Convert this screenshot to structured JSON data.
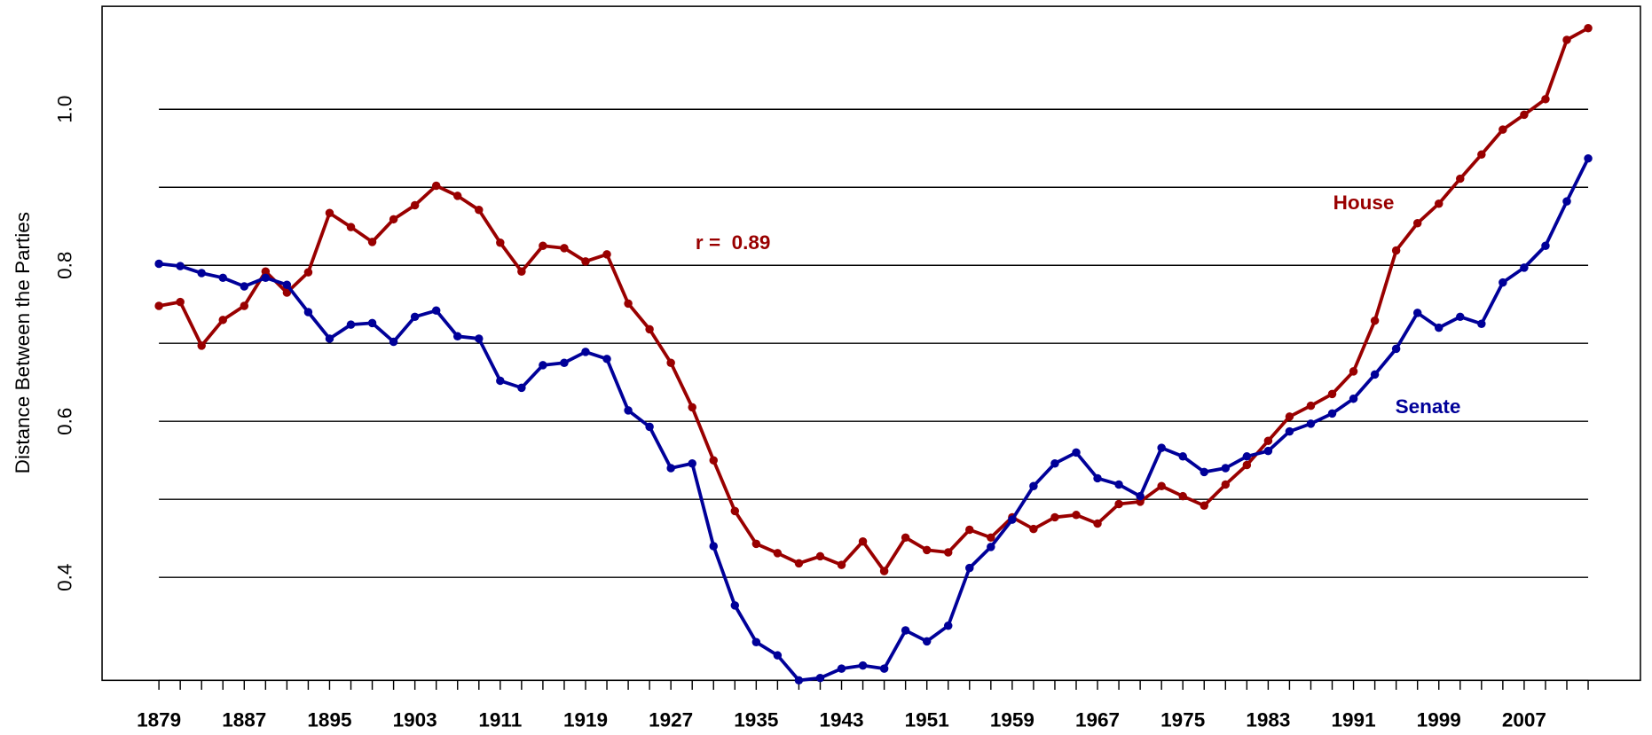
{
  "chart_data": {
    "type": "line",
    "ylabel": "Distance Between the Parties",
    "x": [
      1879,
      1881,
      1883,
      1885,
      1887,
      1889,
      1891,
      1893,
      1895,
      1897,
      1899,
      1901,
      1903,
      1905,
      1907,
      1909,
      1911,
      1913,
      1915,
      1917,
      1919,
      1921,
      1923,
      1925,
      1927,
      1929,
      1931,
      1933,
      1935,
      1937,
      1939,
      1941,
      1943,
      1945,
      1947,
      1949,
      1951,
      1953,
      1955,
      1957,
      1959,
      1961,
      1963,
      1965,
      1967,
      1969,
      1971,
      1973,
      1975,
      1977,
      1979,
      1981,
      1983,
      1985,
      1987,
      1989,
      1991,
      1993,
      1995,
      1997,
      1999,
      2001,
      2003,
      2005,
      2007,
      2009,
      2011,
      2013
    ],
    "series": [
      {
        "name": "House",
        "color": "#990000",
        "values": [
          0.748,
          0.753,
          0.697,
          0.73,
          0.748,
          0.792,
          0.765,
          0.791,
          0.867,
          0.849,
          0.83,
          0.859,
          0.877,
          0.902,
          0.889,
          0.871,
          0.829,
          0.792,
          0.825,
          0.822,
          0.805,
          0.814,
          0.751,
          0.718,
          0.675,
          0.618,
          0.55,
          0.485,
          0.443,
          0.431,
          0.418,
          0.427,
          0.416,
          0.446,
          0.408,
          0.451,
          0.435,
          0.432,
          0.461,
          0.451,
          0.477,
          0.462,
          0.477,
          0.48,
          0.469,
          0.494,
          0.497,
          0.517,
          0.504,
          0.492,
          0.519,
          0.544,
          0.575,
          0.606,
          0.62,
          0.635,
          0.664,
          0.729,
          0.819,
          0.854,
          0.879,
          0.911,
          0.942,
          0.974,
          0.993,
          1.013,
          1.089,
          1.104
        ]
      },
      {
        "name": "Senate",
        "color": "#000099",
        "values": [
          0.802,
          0.799,
          0.79,
          0.784,
          0.773,
          0.784,
          0.775,
          0.74,
          0.706,
          0.724,
          0.726,
          0.702,
          0.734,
          0.742,
          0.709,
          0.706,
          0.652,
          0.643,
          0.672,
          0.675,
          0.689,
          0.68,
          0.614,
          0.593,
          0.54,
          0.546,
          0.44,
          0.364,
          0.317,
          0.3,
          0.268,
          0.271,
          0.283,
          0.287,
          0.283,
          0.332,
          0.318,
          0.338,
          0.412,
          0.439,
          0.474,
          0.517,
          0.546,
          0.56,
          0.527,
          0.519,
          0.504,
          0.566,
          0.555,
          0.535,
          0.54,
          0.555,
          0.562,
          0.587,
          0.597,
          0.61,
          0.629,
          0.66,
          0.693,
          0.739,
          0.72,
          0.734,
          0.725,
          0.778,
          0.797,
          0.825,
          0.882,
          0.937
        ]
      }
    ],
    "annotations": [
      "r =  0.89"
    ],
    "xlim": [
      1873.67,
      2017.9
    ],
    "ylim": [
      0.268,
      1.132
    ],
    "xticks": [
      1879,
      1887,
      1895,
      1903,
      1911,
      1919,
      1927,
      1935,
      1943,
      1951,
      1959,
      1967,
      1975,
      1983,
      1991,
      1999,
      2007
    ],
    "yticks": [
      0.4,
      0.6,
      0.8,
      {
        "value": 1,
        "label": "1.0"
      }
    ],
    "ygrid": [
      0.4,
      0.5,
      0.6,
      0.7,
      0.8,
      0.9,
      1.0
    ],
    "legend": "inline"
  }
}
